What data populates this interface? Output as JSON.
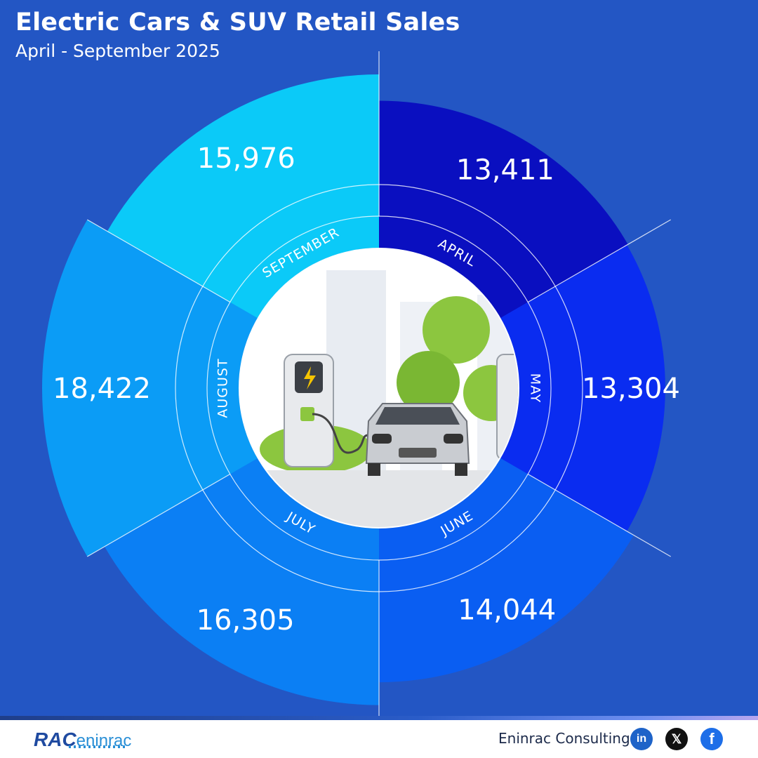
{
  "header": {
    "title": "Electric Cars & SUV Retail Sales",
    "subtitle": "April - September 2025"
  },
  "chart_data": {
    "type": "pie",
    "title": "Electric Cars & SUV Retail Sales",
    "subtitle": "April - September 2025",
    "categories": [
      "APRIL",
      "MAY",
      "JUNE",
      "JULY",
      "AUGUST",
      "SEPTEMBER"
    ],
    "values": [
      13411,
      13304,
      14044,
      16305,
      18422,
      15976
    ],
    "value_labels": [
      "13,411",
      "13,304",
      "14,044",
      "16,305",
      "18,422",
      "15,976"
    ],
    "colors": [
      "#0a0fc0",
      "#0a2cf0",
      "#0a5ef2",
      "#0b7ff4",
      "#0b9cf6",
      "#0bcaf8"
    ],
    "segment_style": "polar-area (radius proportional to value)"
  },
  "colors": {
    "background": "#2356c4",
    "ring_line": "#ffffff",
    "center": "#ffffff"
  },
  "footer": {
    "logo_text": "RAC",
    "logo_text_secondary": "eninrac",
    "brand": "Eninrac Consulting",
    "social_icons": [
      "linkedin-icon",
      "x-icon",
      "facebook-icon"
    ],
    "linkedin_glyph": "in",
    "x_glyph": "𝕏",
    "facebook_glyph": "f"
  }
}
